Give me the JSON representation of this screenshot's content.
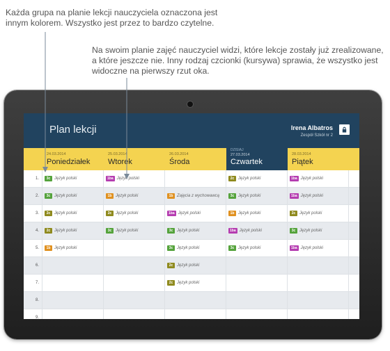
{
  "callouts": {
    "colors_note": "Każda grupa na planie lekcji nauczyciela oznaczona jest innym kolorem. Wszystko jest przez to bardzo czytelne.",
    "italic_note": "Na swoim planie zajęć nauczyciel widzi, które lekcje zostały już zrealizowane, a które jeszcze nie. Inny rodzaj czcionki (kursywa) sprawia, że wszystko jest widoczne na pierwszy rzut oka."
  },
  "app": {
    "title": "Plan lekcji",
    "user_name": "Irena Albatros",
    "school": "Zespół Szkół nr 2",
    "lock_icon": "lock-icon"
  },
  "today_label": "DZISIAJ",
  "days": [
    {
      "date": "24.03.2014",
      "name": "Poniedziałek",
      "today": false
    },
    {
      "date": "25.03.2014",
      "name": "Wtorek",
      "today": false
    },
    {
      "date": "26.03.2014",
      "name": "Środa",
      "today": false
    },
    {
      "date": "27.03.2014",
      "name": "Czwartek",
      "today": true
    },
    {
      "date": "28.03.2014",
      "name": "Piątek",
      "today": false
    }
  ],
  "group_colors": {
    "3c": "#55a33c",
    "2c": "#8f8a1e",
    "1b": "#e09120",
    "1ba": "#b53db0"
  },
  "schedule": [
    {
      "num": "1.",
      "cells": [
        {
          "group": "3c",
          "subject": "Język polski",
          "done": true
        },
        {
          "group": "1ba",
          "subject": "Język polski",
          "done": true
        },
        null,
        {
          "group": "2c",
          "subject": "Język polski",
          "done": true
        },
        {
          "group": "1ba",
          "subject": "Język polski",
          "done": true
        }
      ]
    },
    {
      "num": "2.",
      "cells": [
        {
          "group": "3c",
          "subject": "Język polski",
          "done": true
        },
        {
          "group": "1b",
          "subject": "Język polski",
          "done": true
        },
        {
          "group": "1b",
          "subject": "Zajęcia z wychowawcą",
          "done": true
        },
        {
          "group": "3c",
          "subject": "Język polski",
          "done": true
        },
        {
          "group": "1ba",
          "subject": "Język polski",
          "done": true
        }
      ]
    },
    {
      "num": "3.",
      "cells": [
        {
          "group": "2c",
          "subject": "Język polski",
          "done": true
        },
        {
          "group": "2c",
          "subject": "Język polski",
          "done": true
        },
        {
          "group": "1ba",
          "subject": "Język polski",
          "done": true
        },
        {
          "group": "1b",
          "subject": "Język polski",
          "done": true
        },
        {
          "group": "2c",
          "subject": "Język polski",
          "done": true
        }
      ]
    },
    {
      "num": "4.",
      "cells": [
        {
          "group": "2c",
          "subject": "Język polski",
          "done": true
        },
        {
          "group": "3c",
          "subject": "Język polski",
          "done": true
        },
        {
          "group": "3c",
          "subject": "Język polski",
          "done": true
        },
        {
          "group": "1ba",
          "subject": "Język polski",
          "done": true
        },
        {
          "group": "3c",
          "subject": "Język polski",
          "done": true
        }
      ]
    },
    {
      "num": "5.",
      "cells": [
        {
          "group": "1b",
          "subject": "Język polski",
          "done": true
        },
        null,
        {
          "group": "3c",
          "subject": "Język polski",
          "done": true
        },
        {
          "group": "3c",
          "subject": "Język polski",
          "done": true
        },
        {
          "group": "1ba",
          "subject": "Język polski",
          "done": true
        }
      ]
    },
    {
      "num": "6.",
      "cells": [
        null,
        null,
        {
          "group": "2c",
          "subject": "Język polski",
          "done": true
        },
        null,
        null
      ]
    },
    {
      "num": "7.",
      "cells": [
        null,
        null,
        {
          "group": "2c",
          "subject": "Język polski",
          "done": true
        },
        null,
        null
      ]
    },
    {
      "num": "8.",
      "cells": [
        null,
        null,
        null,
        null,
        null
      ]
    },
    {
      "num": "9.",
      "cells": [
        null,
        null,
        null,
        null,
        null
      ]
    }
  ]
}
